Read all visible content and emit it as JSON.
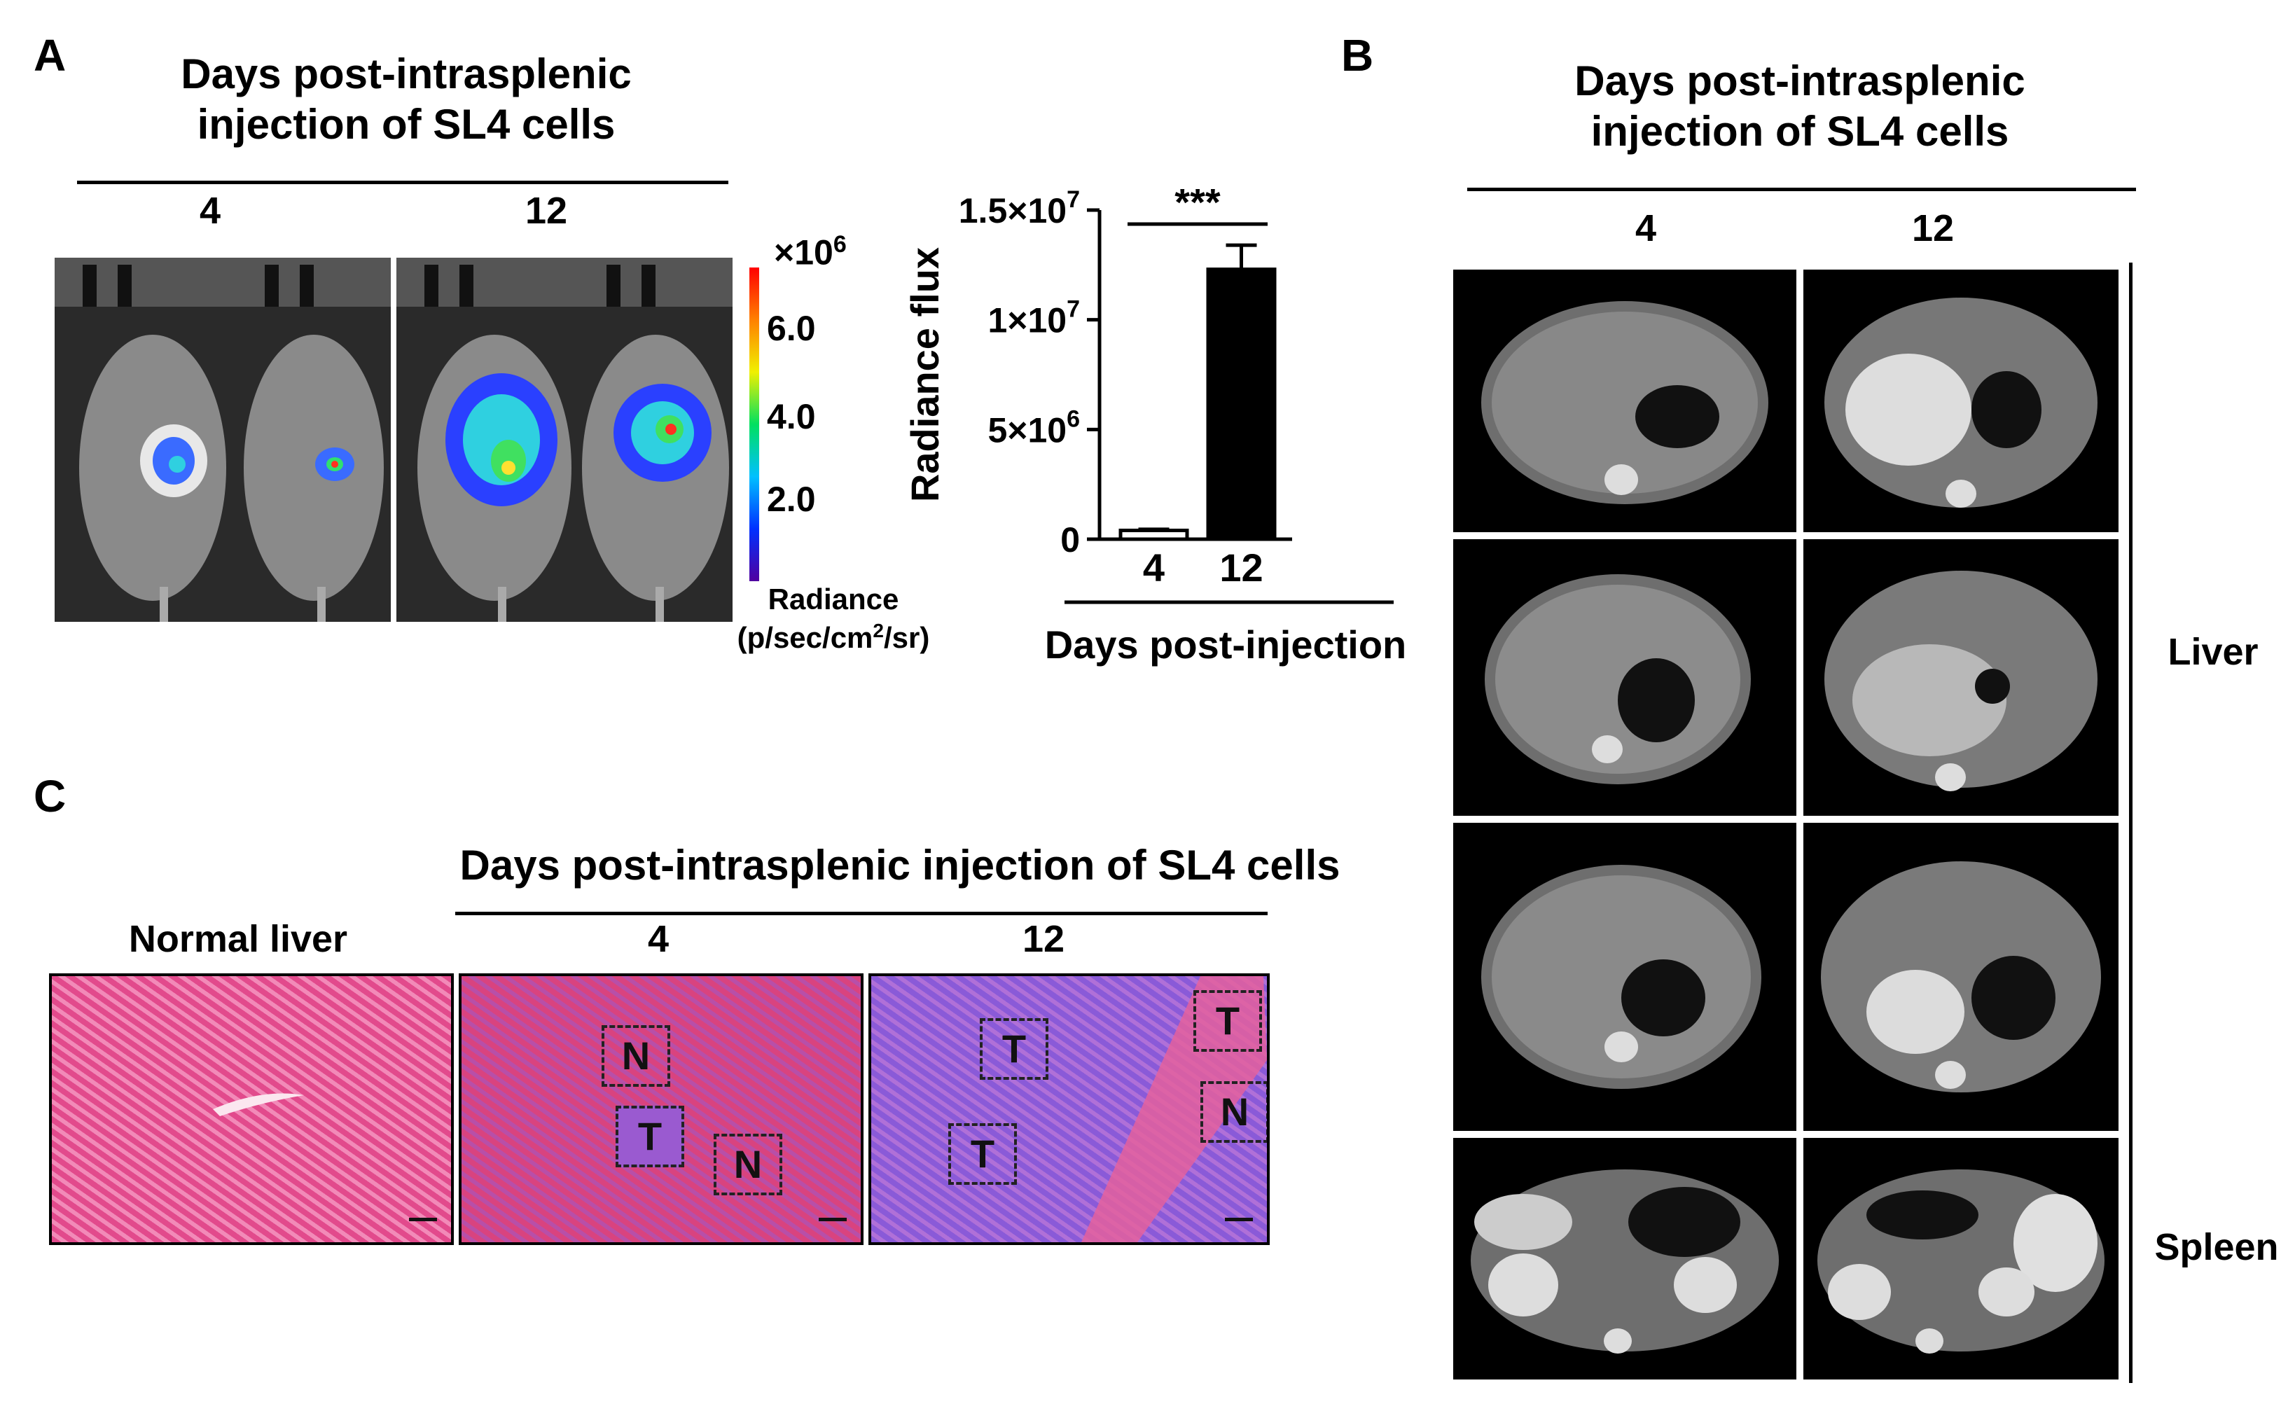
{
  "panelA": {
    "letter": "A",
    "title_line1": "Days post-intrasplenic",
    "title_line2": "injection of SL4 cells",
    "day_a": "4",
    "day_b": "12",
    "colorbar": {
      "multiplier": "×10",
      "multiplier_exp": "6",
      "ticks": [
        "6.0",
        "4.0",
        "2.0"
      ],
      "label_line1": "Radiance",
      "label_line2": "(p/sec/cm",
      "label_sup": "2",
      "label_tail": "/sr)"
    }
  },
  "chart": {
    "ylabel": "Radiance flux",
    "xlabel": "Days post-injection",
    "significance": "***",
    "ytick_labels": [
      {
        "base": "0",
        "exp": ""
      },
      {
        "base": "5×10",
        "exp": "6"
      },
      {
        "base": "1×10",
        "exp": "7"
      },
      {
        "base": "1.5×10",
        "exp": "7"
      }
    ]
  },
  "chart_data": {
    "type": "bar",
    "categories": [
      "4",
      "12"
    ],
    "values": [
      400000,
      12300000
    ],
    "errors": [
      50000,
      1100000
    ],
    "ylim": [
      0,
      15000000
    ],
    "yticks": [
      0,
      5000000,
      10000000,
      15000000
    ],
    "xlabel": "Days post-injection",
    "ylabel": "Radiance flux",
    "bar_colors": [
      "#ffffff",
      "#000000"
    ]
  },
  "panelB": {
    "letter": "B",
    "title_line1": "Days post-intrasplenic",
    "title_line2": "injection of SL4 cells",
    "day_a": "4",
    "day_b": "12",
    "label_liver": "Liver",
    "label_spleen": "Spleen"
  },
  "panelC": {
    "letter": "C",
    "title": "Days post-intrasplenic injection of SL4 cells",
    "label_normal": "Normal liver",
    "day_a": "4",
    "day_b": "12",
    "boxes_day4": [
      "N",
      "T",
      "N"
    ],
    "boxes_day12": [
      "T",
      "T",
      "T",
      "N"
    ]
  }
}
